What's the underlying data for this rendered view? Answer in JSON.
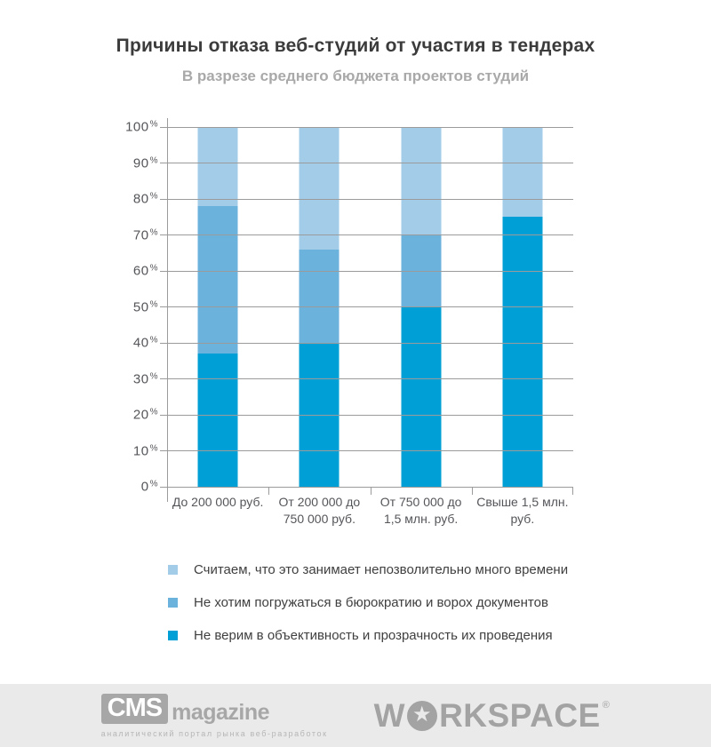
{
  "title": "Причины отказа веб-студий от участия в тендерах",
  "subtitle": "В разрезе среднего бюджета проектов студий",
  "chart_data": {
    "type": "bar",
    "variant": "stacked-100",
    "title": "Причины отказа веб-студий от участия в тендерах",
    "subtitle": "В разрезе среднего бюджета проектов студий",
    "categories": [
      "До 200 000 руб.",
      "От 200 000 до\n750 000 руб.",
      "От 750 000 до\n1,5 млн. руб.",
      "Свыше 1,5 млн.\nруб."
    ],
    "series": [
      {
        "name": "Не верим в объективность и прозрачность их проведения",
        "color": "#00a0d6",
        "values": [
          37,
          40,
          50,
          75
        ]
      },
      {
        "name": "Не хотим погружаться в бюрократию и ворох документов",
        "color": "#6bb2dc",
        "values": [
          41,
          26,
          20,
          0
        ]
      },
      {
        "name": "Считаем, что это занимает непозволительно много времени",
        "color": "#a2cce8",
        "values": [
          22,
          34,
          30,
          25
        ]
      }
    ],
    "stack_order": "bottom-to-top",
    "xlabel": "",
    "ylabel": "",
    "ylim": [
      0,
      100
    ],
    "yticks": [
      0,
      10,
      20,
      30,
      40,
      50,
      60,
      70,
      80,
      90,
      100
    ],
    "ytick_suffix": "%",
    "grid": true,
    "grid_color": "#9b9b9b",
    "legend_position": "bottom-left"
  },
  "legend": [
    {
      "label": "Считаем, что это занимает непозволительно много времени",
      "color": "#a2cce8"
    },
    {
      "label": "Не хотим погружаться в бюрократию и ворох документов",
      "color": "#6bb2dc"
    },
    {
      "label": "Не верим в объективность и прозрачность их проведения",
      "color": "#00a0d6"
    }
  ],
  "footer": {
    "cms_logo": {
      "box_text": "CMS",
      "word": "magazine",
      "tagline": "аналитический портал рынка веб-разработок"
    },
    "workspace_logo": {
      "prefix": "W",
      "star": "★",
      "suffix": "RKSPACE",
      "reg": "®"
    }
  }
}
